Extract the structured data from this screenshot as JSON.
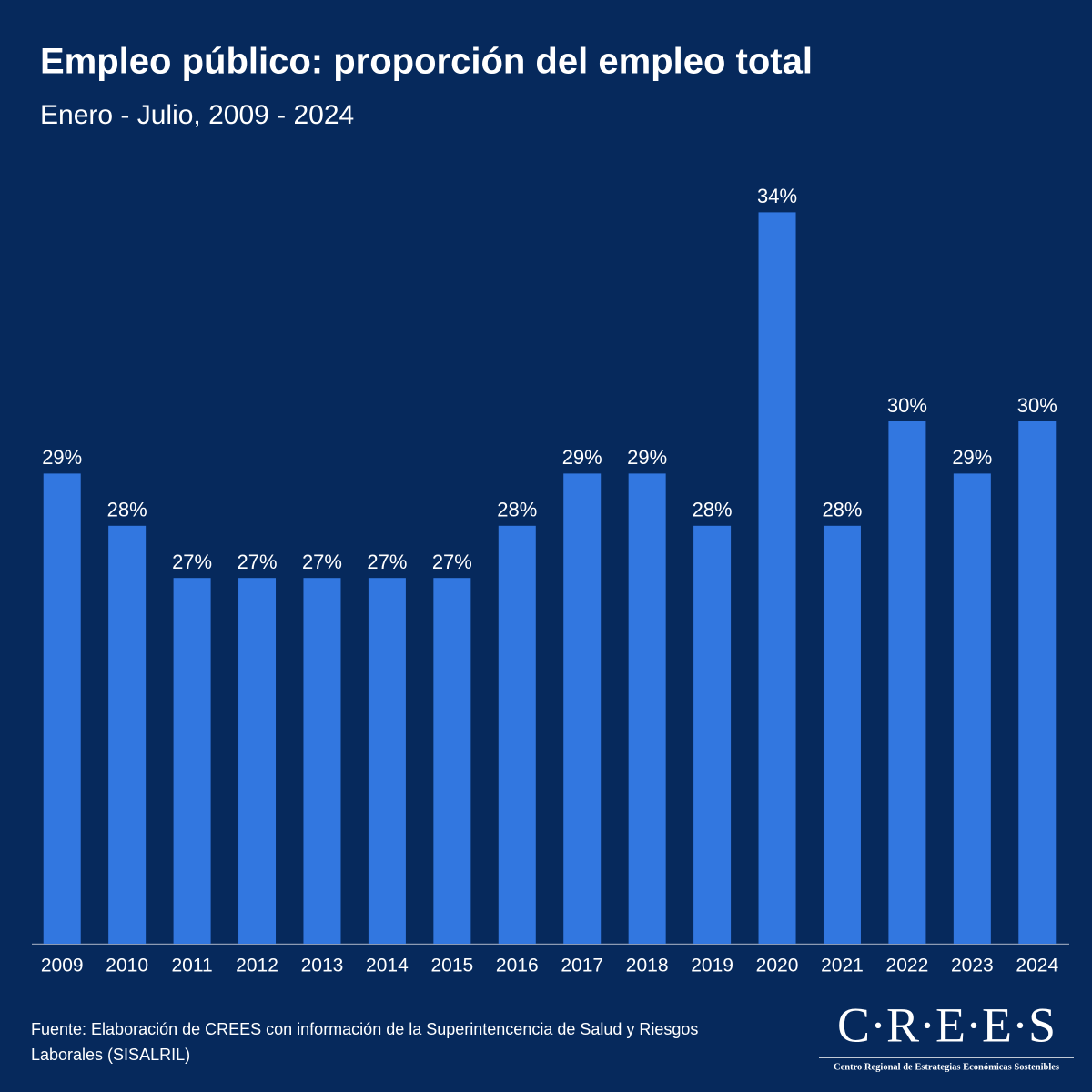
{
  "chart_data": {
    "type": "bar",
    "title": "Empleo público: proporción del empleo total",
    "subtitle": "Enero - Julio, 2009 - 2024",
    "categories": [
      "2009",
      "2010",
      "2011",
      "2012",
      "2013",
      "2014",
      "2015",
      "2016",
      "2017",
      "2018",
      "2019",
      "2020",
      "2021",
      "2022",
      "2023",
      "2024"
    ],
    "values": [
      29,
      28,
      27,
      27,
      27,
      27,
      27,
      28,
      29,
      29,
      28,
      34,
      28,
      30,
      29,
      30
    ],
    "value_labels": [
      "29%",
      "28%",
      "27%",
      "27%",
      "27%",
      "27%",
      "27%",
      "28%",
      "29%",
      "29%",
      "28%",
      "34%",
      "28%",
      "30%",
      "29%",
      "30%"
    ],
    "color": "#3277e0",
    "ylim": [
      20,
      36
    ],
    "source": [
      "Fuente: Elaboración de CREES con información de la Superintencencia de Salud y Riesgos",
      "Laborales (SISALRIL)"
    ],
    "logo": {
      "name": "C·R·E·E·S",
      "tagline": "Centro Regional de Estrategias Económicas Sostenibles"
    }
  }
}
